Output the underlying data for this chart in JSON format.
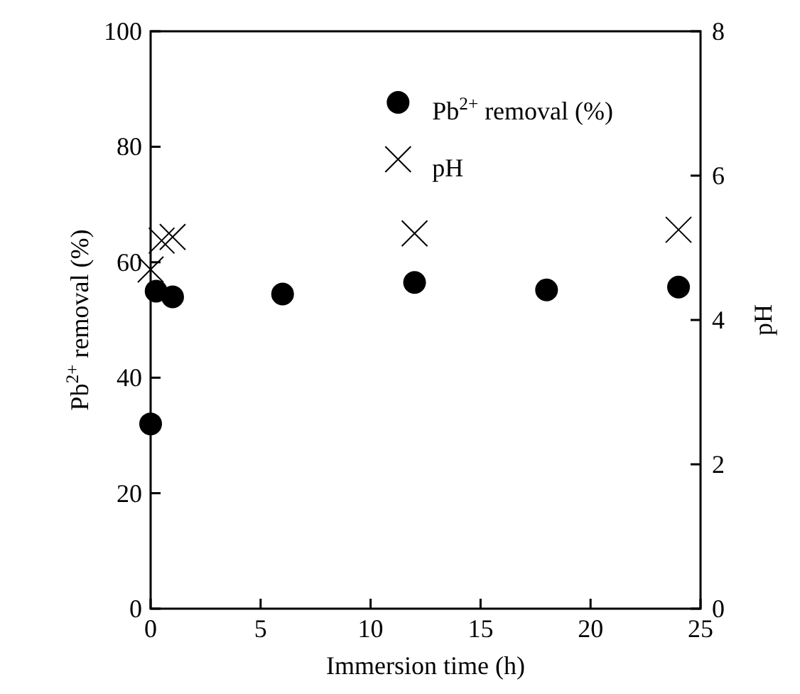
{
  "chart_data": {
    "type": "scatter",
    "xlabel": "Immersion time (h)",
    "ylabel": "Pb$^{2+}$ removal (%)",
    "y2label": "pH",
    "xlim": [
      0,
      25
    ],
    "xticks": [
      0,
      5,
      10,
      15,
      20,
      25
    ],
    "ylim": [
      0,
      100
    ],
    "yticks": [
      0,
      20,
      40,
      60,
      80,
      100
    ],
    "y2lim": [
      0,
      8
    ],
    "y2ticks": [
      0,
      2,
      4,
      6,
      8
    ],
    "grid": false,
    "legend": "top right",
    "series": [
      {
        "name": "Pb$^{2+}$ removal (%)",
        "color": "#000000",
        "marker": "circle",
        "x": [
          0,
          0.25,
          1,
          6,
          12,
          18,
          24
        ],
        "values": [
          32,
          55,
          54,
          54.5,
          56.5,
          55.2,
          55.7
        ]
      },
      {
        "name": "pH",
        "color": "#000000",
        "marker": "cross",
        "axis": "y2",
        "x": [
          0,
          0.5,
          1,
          12,
          24
        ],
        "values": [
          4.7,
          5.1,
          5.15,
          5.2,
          5.25
        ]
      }
    ]
  }
}
